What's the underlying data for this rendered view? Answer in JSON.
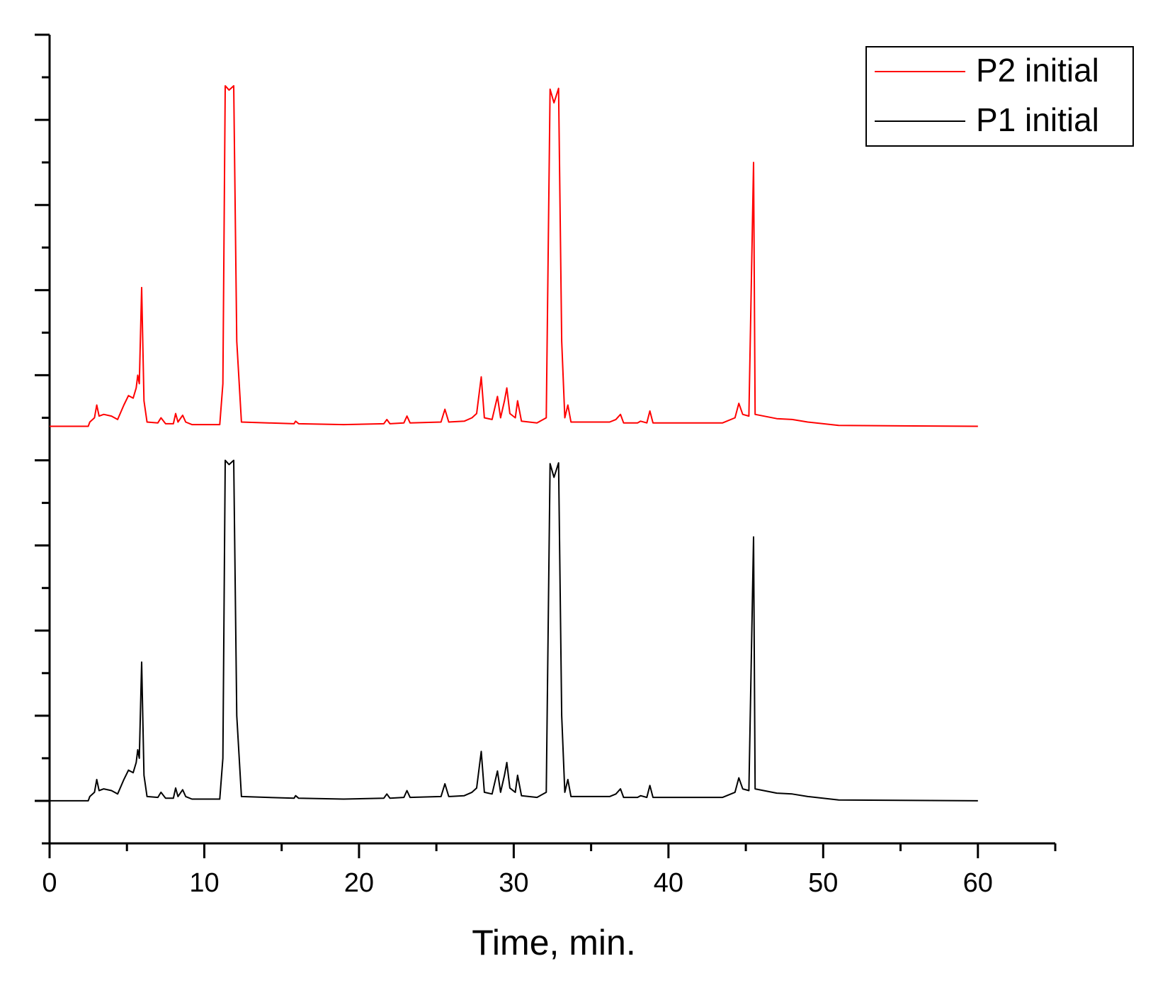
{
  "chart_data": {
    "type": "line",
    "xlabel": "Time, min.",
    "x": [
      0,
      2.5,
      2.6,
      2.9,
      3.05,
      3.2,
      3.5,
      4.0,
      4.4,
      4.8,
      5.1,
      5.4,
      5.6,
      5.7,
      5.8,
      5.95,
      6.1,
      6.3,
      7.0,
      7.2,
      7.5,
      8.0,
      8.15,
      8.3,
      8.6,
      8.8,
      9.2,
      11.0,
      11.2,
      11.35,
      11.6,
      11.9,
      12.1,
      12.4,
      15.8,
      15.9,
      16.1,
      19,
      21.6,
      21.8,
      22.0,
      22.9,
      23.1,
      23.3,
      25.3,
      25.55,
      25.8,
      26.8,
      27.3,
      27.6,
      27.9,
      28.1,
      28.6,
      28.95,
      29.15,
      29.4,
      29.55,
      29.75,
      30.1,
      30.25,
      30.5,
      31.5,
      32.1,
      32.35,
      32.6,
      32.9,
      33.1,
      33.3,
      33.5,
      33.7,
      34.6,
      36.2,
      36.6,
      36.9,
      37.1,
      38.0,
      38.2,
      38.6,
      38.8,
      39.0,
      43.5,
      44.3,
      44.55,
      44.8,
      45.2,
      45.5,
      45.6,
      47,
      48,
      49,
      51,
      60
    ],
    "series": [
      {
        "name": "P2 initial",
        "color": "#ff0000",
        "values": [
          4.4,
          4.4,
          4.45,
          4.5,
          4.65,
          4.52,
          4.54,
          4.52,
          4.48,
          4.65,
          4.76,
          4.73,
          4.85,
          5.0,
          4.9,
          6.03,
          4.7,
          4.45,
          4.44,
          4.5,
          4.43,
          4.43,
          4.55,
          4.45,
          4.53,
          4.45,
          4.42,
          4.42,
          4.9,
          8.4,
          8.35,
          8.4,
          5.4,
          4.45,
          4.43,
          4.46,
          4.43,
          4.42,
          4.43,
          4.48,
          4.43,
          4.44,
          4.52,
          4.44,
          4.45,
          4.6,
          4.45,
          4.46,
          4.5,
          4.55,
          4.98,
          4.5,
          4.48,
          4.75,
          4.5,
          4.7,
          4.85,
          4.55,
          4.5,
          4.7,
          4.46,
          4.44,
          4.5,
          8.36,
          8.2,
          8.37,
          5.4,
          4.5,
          4.65,
          4.45,
          4.45,
          4.45,
          4.48,
          4.54,
          4.44,
          4.44,
          4.46,
          4.44,
          4.58,
          4.44,
          4.44,
          4.5,
          4.67,
          4.54,
          4.52,
          7.5,
          4.54,
          4.49,
          4.48,
          4.45,
          4.41,
          4.4
        ]
      },
      {
        "name": "P1 initial",
        "color": "#000000",
        "values": [
          0,
          0,
          0.05,
          0.1,
          0.25,
          0.12,
          0.14,
          0.12,
          0.08,
          0.25,
          0.36,
          0.33,
          0.45,
          0.6,
          0.5,
          1.63,
          0.3,
          0.05,
          0.04,
          0.1,
          0.03,
          0.03,
          0.15,
          0.05,
          0.13,
          0.05,
          0.02,
          0.02,
          0.5,
          4.0,
          3.95,
          4.0,
          1.0,
          0.05,
          0.03,
          0.06,
          0.03,
          0.02,
          0.03,
          0.08,
          0.03,
          0.04,
          0.12,
          0.04,
          0.05,
          0.2,
          0.05,
          0.06,
          0.1,
          0.15,
          0.58,
          0.1,
          0.08,
          0.35,
          0.1,
          0.3,
          0.45,
          0.15,
          0.1,
          0.3,
          0.06,
          0.04,
          0.1,
          3.96,
          3.8,
          3.97,
          1.0,
          0.1,
          0.25,
          0.05,
          0.05,
          0.05,
          0.08,
          0.14,
          0.04,
          0.04,
          0.06,
          0.04,
          0.18,
          0.04,
          0.04,
          0.1,
          0.27,
          0.14,
          0.12,
          3.1,
          0.14,
          0.09,
          0.08,
          0.05,
          0.01,
          0
        ]
      }
    ],
    "xlim": [
      0,
      65
    ],
    "xticks": [
      0,
      10,
      20,
      30,
      40,
      50,
      60
    ],
    "xminorticks": [
      5,
      15,
      25,
      35,
      45,
      55,
      65
    ],
    "ylim": [
      -0.5,
      9
    ],
    "yticks": [
      0,
      1,
      2,
      3,
      4,
      5,
      6,
      7,
      8,
      9
    ],
    "yminorticks": [
      -0.5,
      0.5,
      1.5,
      2.5,
      3.5,
      4.5,
      5.5,
      6.5,
      7.5,
      8.5
    ],
    "grid": false,
    "legend": "upper right"
  }
}
